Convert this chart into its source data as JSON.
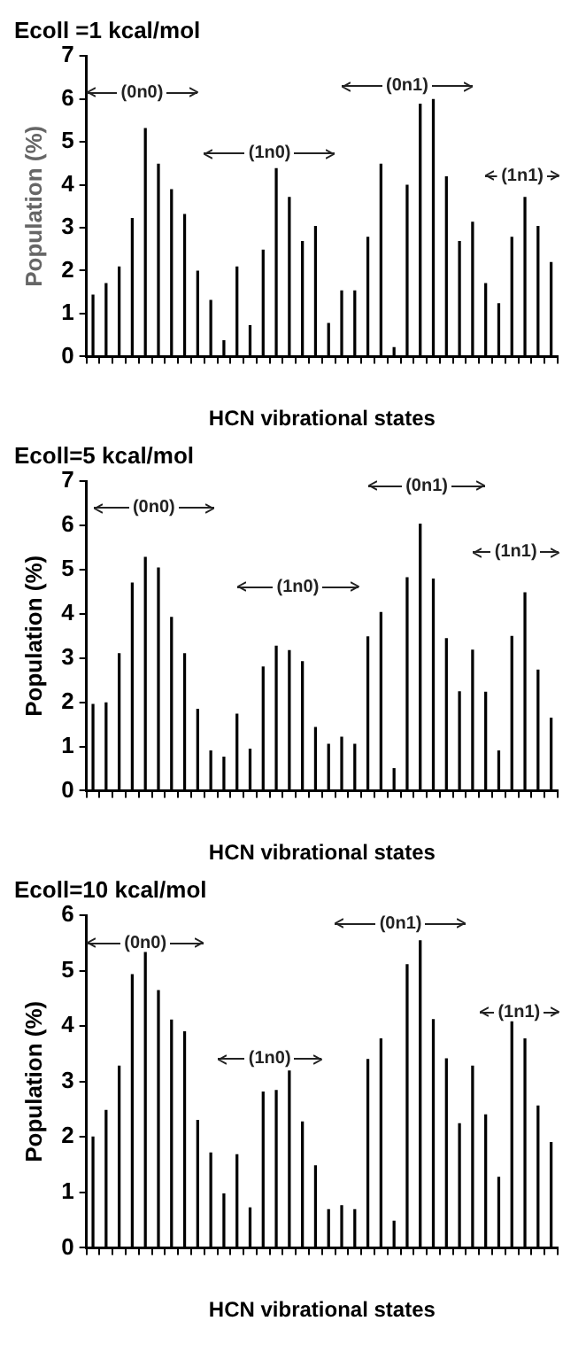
{
  "chart_data": [
    {
      "type": "bar",
      "title": "Ecoll =1 kcal/mol",
      "xlabel": "HCN vibrational states",
      "ylabel": "Population (%)",
      "color": "#000000",
      "categories": [
        null,
        null,
        null,
        null,
        null,
        null,
        null,
        null,
        null,
        null,
        null,
        null,
        null,
        null,
        null,
        null,
        null,
        null,
        null,
        null,
        null,
        null,
        null,
        null,
        null,
        null,
        null,
        null,
        null,
        null,
        null,
        null,
        null,
        null,
        null,
        null
      ],
      "values": [
        1.44,
        1.71,
        2.1,
        3.23,
        5.32,
        4.49,
        3.9,
        3.32,
        2.0,
        1.32,
        0.38,
        2.1,
        0.73,
        2.49,
        4.39,
        3.72,
        2.69,
        3.04,
        0.78,
        1.54,
        1.54,
        2.79,
        4.49,
        0.22,
        4.0,
        5.89,
        6.0,
        4.2,
        2.69,
        3.14,
        1.71,
        1.24,
        2.79,
        3.72,
        3.04,
        2.2
      ],
      "ylim": [
        0,
        7
      ],
      "yticks": [
        0,
        1,
        2,
        3,
        4,
        5,
        6,
        7
      ],
      "annotations": [
        "(0n0)",
        "(1n0)",
        "(0n1)",
        "(1n1)"
      ]
    },
    {
      "type": "bar",
      "title": "Ecoll=5 kcal/mol",
      "xlabel": "HCN vibrational states",
      "ylabel": "Population (%)",
      "color": "#000000",
      "categories": [
        null,
        null,
        null,
        null,
        null,
        null,
        null,
        null,
        null,
        null,
        null,
        null,
        null,
        null,
        null,
        null,
        null,
        null,
        null,
        null,
        null,
        null,
        null,
        null,
        null,
        null,
        null,
        null,
        null,
        null,
        null,
        null,
        null,
        null,
        null,
        null
      ],
      "values": [
        1.96,
        2.0,
        3.11,
        4.71,
        5.29,
        5.05,
        3.93,
        3.11,
        1.85,
        0.91,
        0.77,
        1.74,
        0.95,
        2.81,
        3.28,
        3.18,
        2.93,
        1.44,
        1.06,
        1.22,
        1.06,
        3.49,
        4.04,
        0.51,
        4.83,
        6.04,
        4.8,
        3.45,
        2.25,
        3.19,
        2.24,
        0.91,
        3.5,
        4.49,
        2.74,
        1.65
      ],
      "ylim": [
        0,
        7
      ],
      "yticks": [
        0,
        1,
        2,
        3,
        4,
        5,
        6,
        7
      ],
      "annotations": [
        "(0n0)",
        "(1n0)",
        "(0n1)",
        "(1n1)"
      ]
    },
    {
      "type": "bar",
      "title": "Ecoll=10 kcal/mol",
      "xlabel": "HCN vibrational states",
      "ylabel": "Population (%)",
      "color": "#000000",
      "categories": [
        null,
        null,
        null,
        null,
        null,
        null,
        null,
        null,
        null,
        null,
        null,
        null,
        null,
        null,
        null,
        null,
        null,
        null,
        null,
        null,
        null,
        null,
        null,
        null,
        null,
        null,
        null,
        null,
        null,
        null,
        null,
        null,
        null,
        null,
        null,
        null
      ],
      "values": [
        2.01,
        2.49,
        3.29,
        4.94,
        5.34,
        4.65,
        4.12,
        3.91,
        2.31,
        1.72,
        0.98,
        1.69,
        0.73,
        2.82,
        2.85,
        3.2,
        2.28,
        1.49,
        0.7,
        0.77,
        0.7,
        3.41,
        3.78,
        0.49,
        5.12,
        5.55,
        4.13,
        3.42,
        2.25,
        3.29,
        2.41,
        1.28,
        4.09,
        3.78,
        2.57,
        1.91
      ],
      "ylim": [
        0,
        6
      ],
      "yticks": [
        0,
        1,
        2,
        3,
        4,
        5,
        6
      ],
      "annotations": [
        "(0n0)",
        "(1n0)",
        "(0n1)",
        "(1n1)"
      ]
    }
  ]
}
